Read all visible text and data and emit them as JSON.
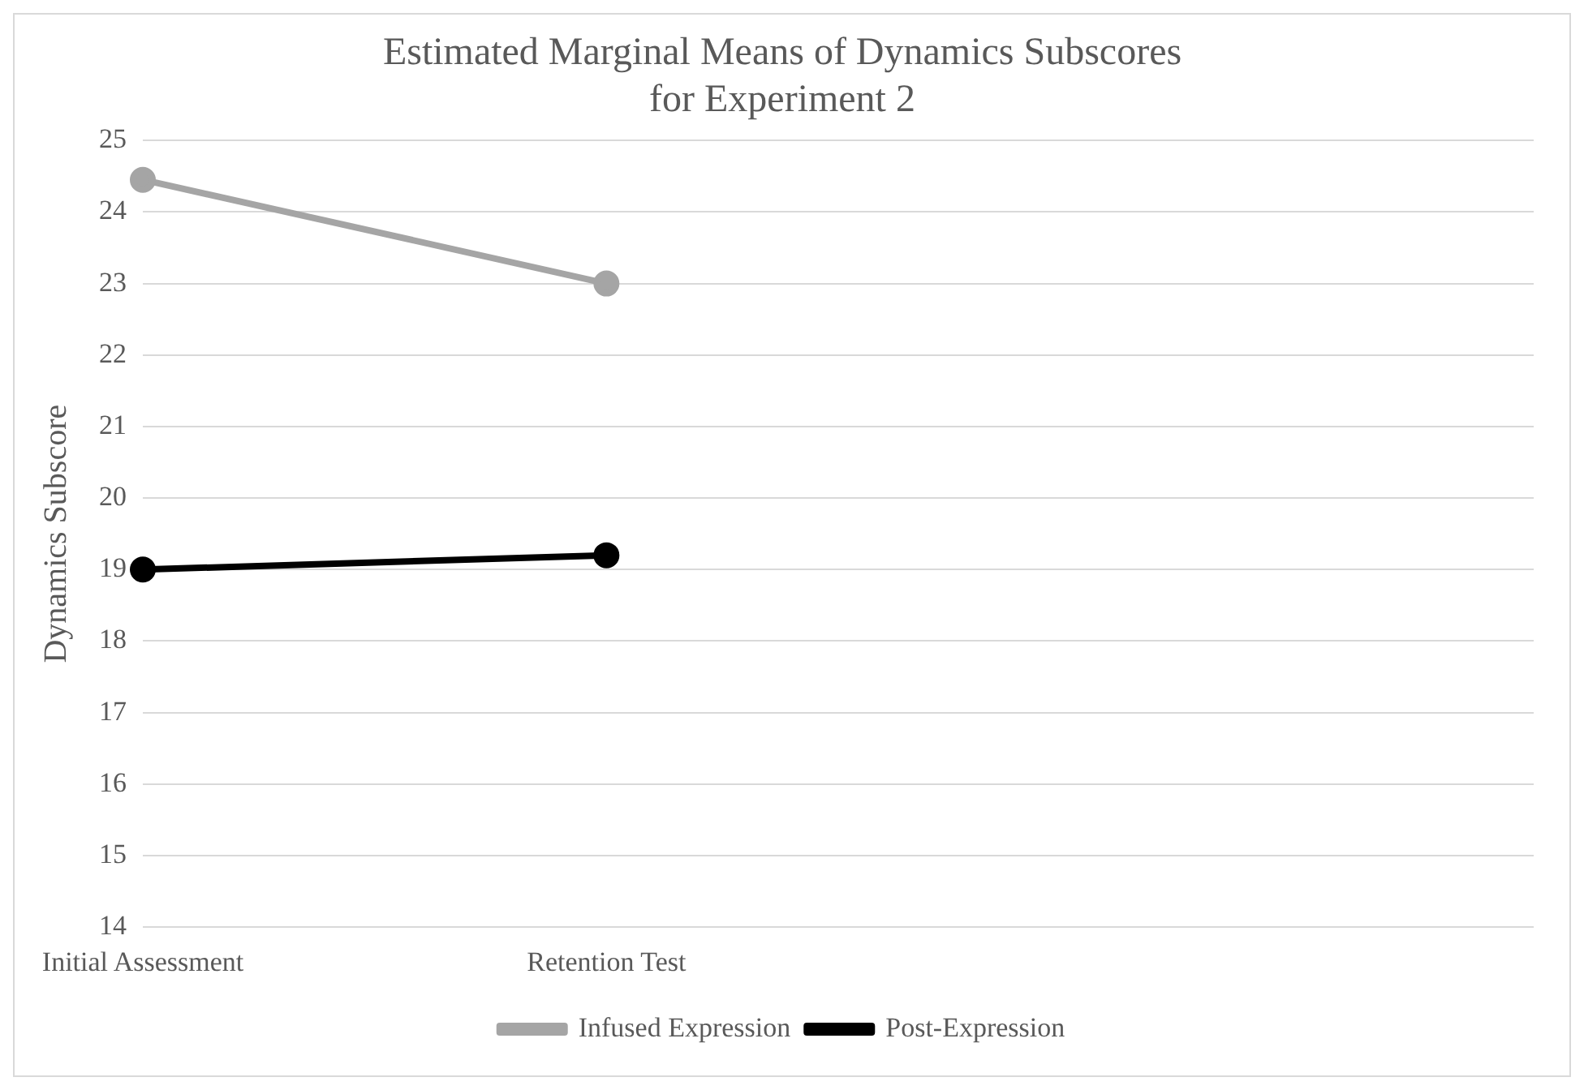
{
  "chart_data": {
    "type": "line",
    "title": "Estimated Marginal Means of Dynamics Subscores\nfor Experiment 2",
    "ylabel": "Dynamics Subscore",
    "categories": [
      "Initial Assessment",
      "Retention Test",
      null,
      null
    ],
    "series": [
      {
        "name": "Infused Expression",
        "color": "#a5a5a5",
        "values": [
          24.45,
          23.0,
          null,
          null
        ]
      },
      {
        "name": "Post-Expression",
        "color": "#000000",
        "values": [
          19.0,
          19.2,
          null,
          null
        ]
      }
    ],
    "ylim": [
      14,
      25
    ],
    "yticks": [
      14,
      15,
      16,
      17,
      18,
      19,
      20,
      21,
      22,
      23,
      24,
      25
    ],
    "grid": "y",
    "legend": "bottom",
    "marker": "circle",
    "line_style": "solid"
  }
}
